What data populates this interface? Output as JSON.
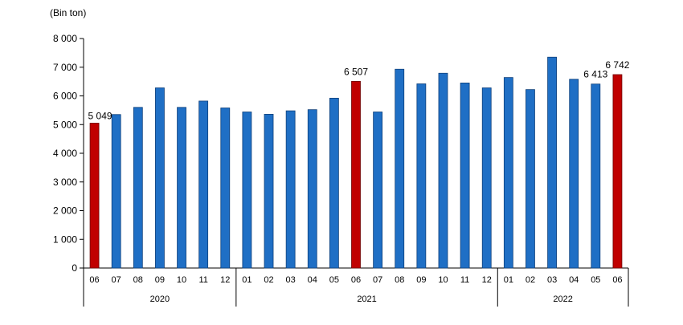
{
  "chart_data": {
    "type": "bar",
    "unit_label": "(Bin ton)",
    "ylim": [
      0,
      8000
    ],
    "yticks": [
      0,
      1000,
      2000,
      3000,
      4000,
      5000,
      6000,
      7000,
      8000
    ],
    "ytick_labels": [
      "0",
      "1 000",
      "2 000",
      "3 000",
      "4 000",
      "5 000",
      "6 000",
      "7 000",
      "8 000"
    ],
    "grid": false,
    "categories": [
      "06",
      "07",
      "08",
      "09",
      "10",
      "11",
      "12",
      "01",
      "02",
      "03",
      "04",
      "05",
      "06",
      "07",
      "08",
      "09",
      "10",
      "11",
      "12",
      "01",
      "02",
      "03",
      "04",
      "05",
      "06"
    ],
    "values": [
      5049,
      5350,
      5600,
      6280,
      5600,
      5820,
      5580,
      5440,
      5360,
      5480,
      5520,
      5920,
      6507,
      5440,
      6930,
      6420,
      6790,
      6450,
      6280,
      6640,
      6220,
      7350,
      6580,
      6413,
      6742
    ],
    "highlight": [
      true,
      false,
      false,
      false,
      false,
      false,
      false,
      false,
      false,
      false,
      false,
      false,
      true,
      false,
      false,
      false,
      false,
      false,
      false,
      false,
      false,
      false,
      false,
      false,
      true
    ],
    "data_labels": [
      {
        "index": 0,
        "text": "5 049"
      },
      {
        "index": 12,
        "text": "6 507"
      },
      {
        "index": 23,
        "text": "6 413"
      },
      {
        "index": 24,
        "text": "6 742"
      }
    ],
    "groups": [
      {
        "label": "2020",
        "start": 0,
        "end": 6
      },
      {
        "label": "2021",
        "start": 7,
        "end": 18
      },
      {
        "label": "2022",
        "start": 19,
        "end": 24
      }
    ],
    "colors": {
      "bar": "#1f6fc5",
      "bar_outline": "#0d3f7a",
      "highlight": "#c00000",
      "highlight_outline": "#6e0000",
      "axis": "#000000"
    }
  }
}
